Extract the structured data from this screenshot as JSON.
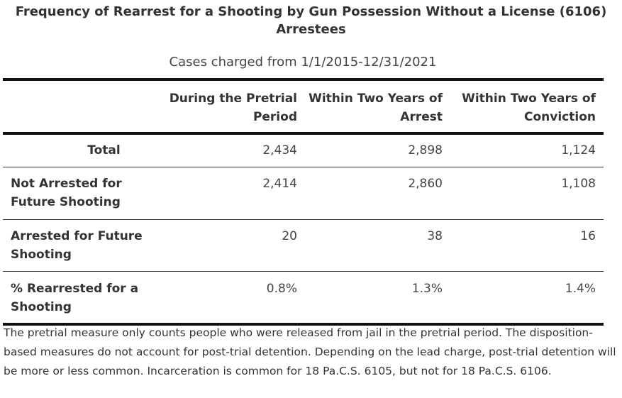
{
  "title": "Frequency of Rearrest for a Shooting by Gun Possession Without a License (6106) Arrestees",
  "subtitle": "Cases charged from 1/1/2015-12/31/2021",
  "columns": [
    "During the Pretrial Period",
    "Within Two Years of Arrest",
    "Within Two Years of Conviction"
  ],
  "rows": [
    {
      "label": "Total",
      "values": [
        "2,434",
        "2,898",
        "1,124"
      ]
    },
    {
      "label": "Not Arrested for Future Shooting",
      "values": [
        "2,414",
        "2,860",
        "1,108"
      ]
    },
    {
      "label": "Arrested for Future Shooting",
      "values": [
        "20",
        "38",
        "16"
      ]
    },
    {
      "label": "% Rearrested for a Shooting",
      "values": [
        "0.8%",
        "1.3%",
        "1.4%"
      ]
    }
  ],
  "note": "The pretrial measure only counts people who were released from jail in the pretrial period. The disposition-based measures do not account for post-trial detention. Depending on the lead charge, post-trial detention will be more or less common. Incarceration is common for 18 Pa.C.S. 6105, but not for 18 Pa.C.S. 6106."
}
